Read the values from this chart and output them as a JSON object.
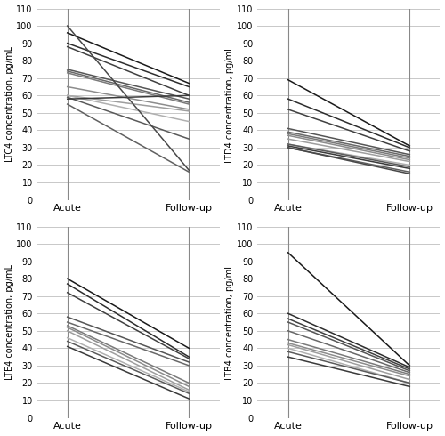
{
  "ltc4": {
    "acute": [
      96,
      90,
      88,
      75,
      74,
      73,
      65,
      60,
      60,
      59,
      58,
      55,
      100
    ],
    "followup": [
      67,
      65,
      60,
      58,
      56,
      55,
      52,
      51,
      45,
      35,
      60,
      16,
      17
    ],
    "ylabel": "LTC4 concentration, pg/mL"
  },
  "ltd4": {
    "acute": [
      69,
      58,
      52,
      41,
      39,
      38,
      37,
      35,
      32,
      32,
      31,
      30,
      30
    ],
    "followup": [
      31,
      30,
      28,
      26,
      25,
      24,
      23,
      22,
      20,
      19,
      18,
      16,
      15
    ],
    "ylabel": "LTD4 concentration, pg/mL"
  },
  "lte4": {
    "acute": [
      80,
      77,
      72,
      58,
      55,
      53,
      52,
      50,
      46,
      44,
      41
    ],
    "followup": [
      40,
      35,
      34,
      32,
      30,
      20,
      18,
      16,
      15,
      14,
      11
    ],
    "ylabel": "LTE4 concentration, pg/mL"
  },
  "ltb4": {
    "acute": [
      95,
      60,
      57,
      55,
      50,
      45,
      43,
      42,
      40,
      38,
      35
    ],
    "followup": [
      30,
      29,
      28,
      27,
      26,
      25,
      24,
      22,
      20,
      20,
      18
    ],
    "ylabel": "LTB4 concentration, pg/mL"
  },
  "ylim": [
    0,
    110
  ],
  "yticks": [
    0,
    10,
    20,
    30,
    40,
    50,
    60,
    70,
    80,
    90,
    100,
    110
  ],
  "xtick_labels": [
    "Acute",
    "Follow-up"
  ],
  "line_colors": [
    "#1a1a1a",
    "#2d2d2d",
    "#404040",
    "#555555",
    "#686868",
    "#7a7a7a",
    "#8c8c8c",
    "#9e9e9e",
    "#b0b0b0",
    "#5a5a5a",
    "#3a3a3a",
    "#606060",
    "#484848"
  ],
  "bg_color": "#ffffff",
  "grid_color": "#c8c8c8",
  "vline_color": "#888888",
  "xlabel_fontsize": 8,
  "ylabel_fontsize": 7,
  "ytick_fontsize": 7
}
